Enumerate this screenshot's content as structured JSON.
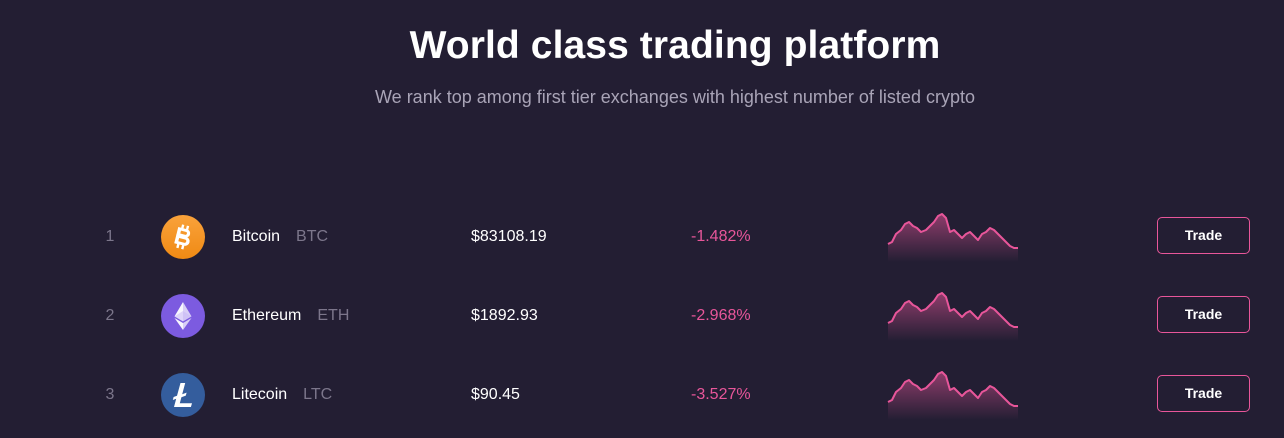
{
  "header": {
    "title": "World class trading platform",
    "subtitle": "We rank top among first tier exchanges with highest number of listed crypto"
  },
  "colors": {
    "background": "#231e33",
    "accent": "#e8569a",
    "muted": "#7c768b",
    "bitcoin": "#f7931a",
    "ethereum": "#7c5be0",
    "litecoin": "#345d9d"
  },
  "markets": [
    {
      "rank": "1",
      "name": "Bitcoin",
      "symbol": "BTC",
      "price": "$83108.19",
      "change": "-1.482%",
      "icon": "bitcoin-icon",
      "trade_label": "Trade"
    },
    {
      "rank": "2",
      "name": "Ethereum",
      "symbol": "ETH",
      "price": "$1892.93",
      "change": "-2.968%",
      "icon": "ethereum-icon",
      "trade_label": "Trade"
    },
    {
      "rank": "3",
      "name": "Litecoin",
      "symbol": "LTC",
      "price": "$90.45",
      "change": "-3.527%",
      "icon": "litecoin-icon",
      "trade_label": "Trade"
    }
  ]
}
